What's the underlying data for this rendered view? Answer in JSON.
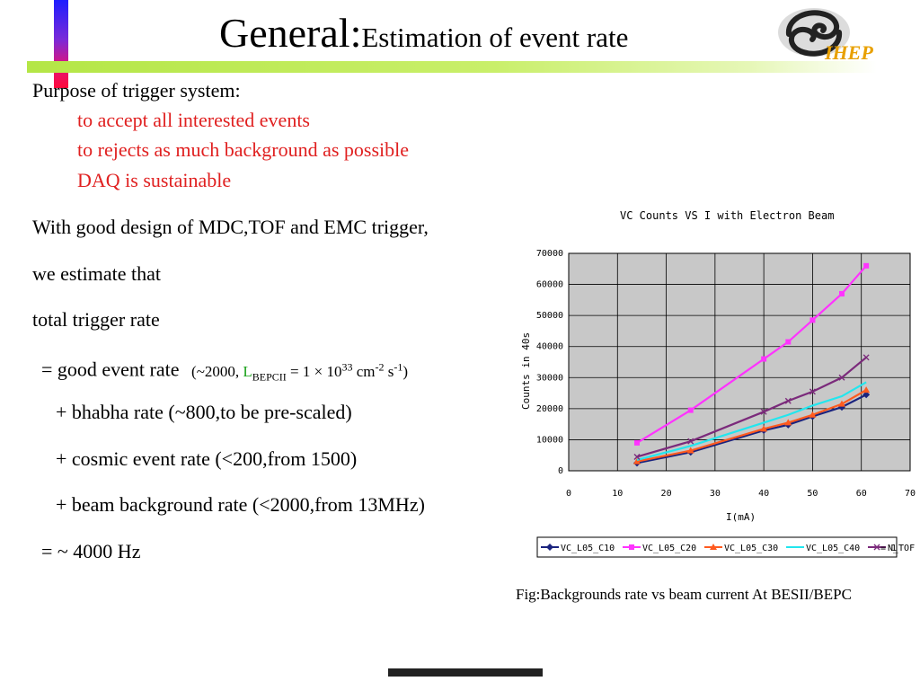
{
  "header": {
    "title_main": "General:",
    "title_sub": "Estimation of event rate",
    "logo_text": "IHEP"
  },
  "body": {
    "purpose_heading": "Purpose of trigger system:",
    "purpose_items": [
      "to accept all interested events",
      "to rejects as much background as possible",
      "DAQ is sustainable"
    ],
    "design_line": "With good design of MDC,TOF and EMC trigger,",
    "estimate_line": "we estimate that",
    "total_line": "total trigger rate",
    "good_event": {
      "prefix": "= good event rate",
      "note_open": "(~2000,",
      "lum_symbol": "L",
      "lum_sub": "BEPCII",
      "lum_eq": "= 1 × 10",
      "exp1": "33",
      "unit_cm": "cm",
      "exp2": "-2",
      "unit_s": "s",
      "exp3": "-1",
      "note_close": ")"
    },
    "bhabha_line": "+ bhabha rate  (~800,to be pre-scaled)",
    "cosmic_line": "+ cosmic event rate  (<200,from 1500)",
    "beam_line": "+ beam background rate (<2000,from 13MHz)",
    "result_line": "=  ~ 4000 Hz"
  },
  "caption": "Fig:Backgrounds rate vs beam current At BESII/BEPC",
  "chart_data": {
    "type": "line",
    "title": "VC Counts VS I with Electron Beam",
    "xlabel": "I(mA)",
    "ylabel": "Counts in 40s",
    "xlim": [
      0,
      70
    ],
    "ylim": [
      0,
      70000
    ],
    "xticks": [
      0,
      10,
      20,
      30,
      40,
      50,
      60,
      70
    ],
    "yticks": [
      0,
      10000,
      20000,
      30000,
      40000,
      50000,
      60000,
      70000
    ],
    "grid": true,
    "legend_position": "bottom",
    "legend_extra": "= 1",
    "series": [
      {
        "name": "VC_L05_C10",
        "color": "#1a237e",
        "marker": "diamond",
        "x": [
          14,
          25,
          40,
          45,
          50,
          56,
          61
        ],
        "y": [
          2500,
          6000,
          13000,
          14800,
          17500,
          20500,
          24500
        ]
      },
      {
        "name": "VC_L05_C20",
        "color": "#ff33ff",
        "marker": "square",
        "x": [
          14,
          25,
          40,
          45,
          50,
          56,
          61
        ],
        "y": [
          9000,
          19500,
          36000,
          41500,
          48500,
          57000,
          66000
        ]
      },
      {
        "name": "VC_L05_C30",
        "color": "#ff5a1f",
        "marker": "triangle",
        "x": [
          14,
          25,
          40,
          45,
          50,
          56,
          61
        ],
        "y": [
          3000,
          6500,
          13500,
          15500,
          18000,
          21500,
          26000
        ]
      },
      {
        "name": "VC_L05_C40",
        "color": "#22e6ee",
        "marker": "none",
        "x": [
          14,
          25,
          40,
          45,
          50,
          56,
          61
        ],
        "y": [
          3500,
          8000,
          15500,
          18000,
          21000,
          24000,
          28500
        ]
      },
      {
        "name": "N_TOF",
        "color": "#7b2a7b",
        "marker": "x",
        "x": [
          14,
          25,
          40,
          45,
          50,
          56,
          61
        ],
        "y": [
          4500,
          9500,
          19000,
          22500,
          25500,
          30000,
          36500
        ]
      }
    ]
  }
}
